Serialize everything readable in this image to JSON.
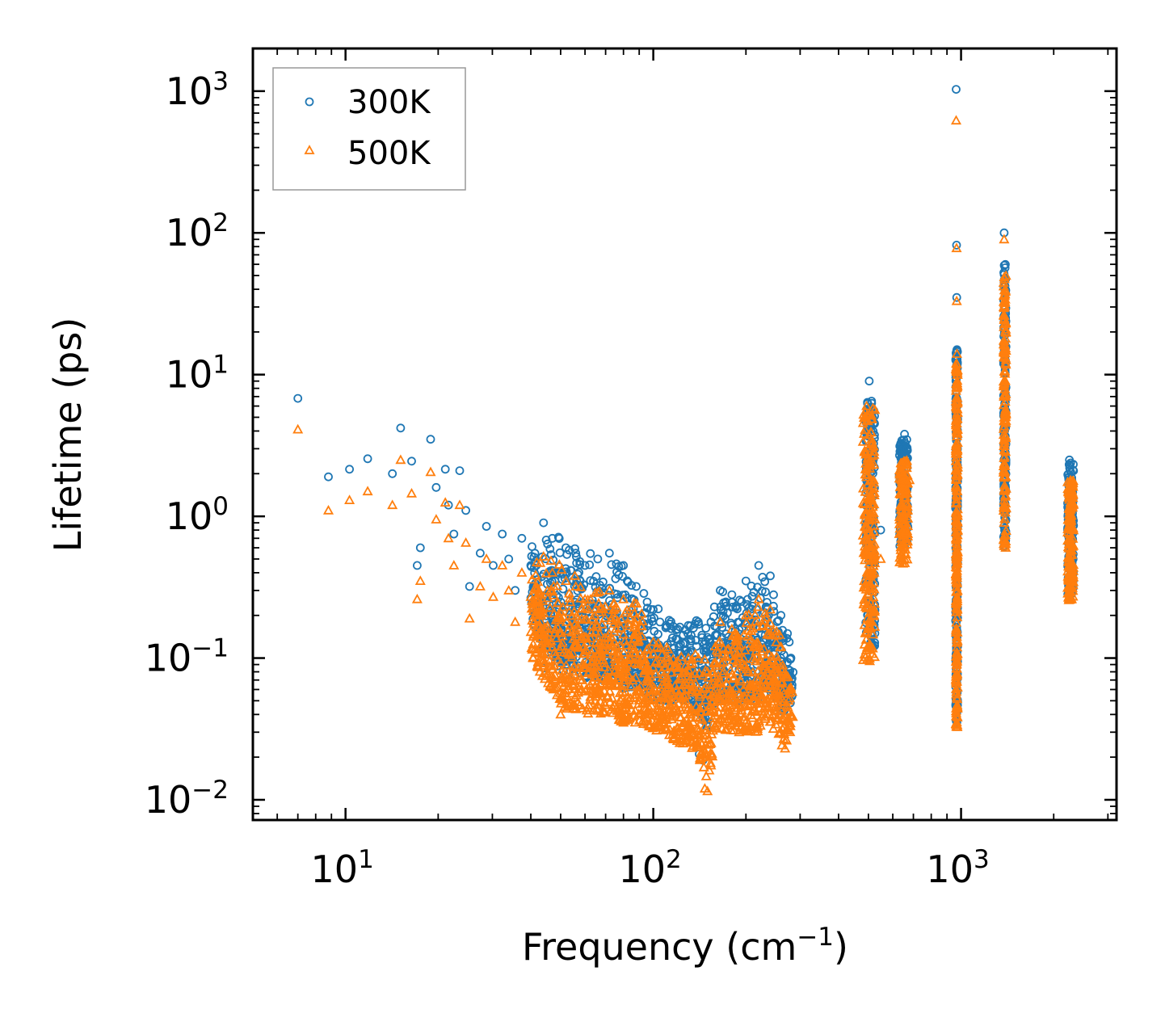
{
  "chart_data": {
    "type": "scatter",
    "title": "",
    "xlabel": "Frequency (cm",
    "xlabel_sup": "−1",
    "xlabel_end": ")",
    "ylabel": "Lifetime (ps)",
    "xscale": "log",
    "yscale": "log",
    "xlim": [
      5,
      3200
    ],
    "ylim": [
      0.0072,
      2000
    ],
    "legend_position": "top-left",
    "x_ticks": [
      {
        "value": 10,
        "base": "10",
        "exp": "1"
      },
      {
        "value": 100,
        "base": "10",
        "exp": "2"
      },
      {
        "value": 1000,
        "base": "10",
        "exp": "3"
      }
    ],
    "y_ticks": [
      {
        "value": 0.01,
        "base": "10",
        "exp": "−2"
      },
      {
        "value": 0.1,
        "base": "10",
        "exp": "−1"
      },
      {
        "value": 1,
        "base": "10",
        "exp": "0"
      },
      {
        "value": 10,
        "base": "10",
        "exp": "1"
      },
      {
        "value": 100,
        "base": "10",
        "exp": "2"
      },
      {
        "value": 1000,
        "base": "10",
        "exp": "3"
      }
    ],
    "series": [
      {
        "name": "300K",
        "marker": "circle",
        "color": "#1f77b4",
        "points": [
          [
            7,
            6.8
          ],
          [
            8.8,
            1.9
          ],
          [
            10.3,
            2.15
          ],
          [
            11.8,
            2.55
          ],
          [
            14.2,
            2.0
          ],
          [
            15.1,
            4.2
          ],
          [
            16.4,
            2.45
          ],
          [
            17.1,
            0.45
          ],
          [
            17.5,
            0.6
          ],
          [
            18.9,
            3.5
          ],
          [
            19.7,
            1.6
          ],
          [
            21.1,
            2.15
          ],
          [
            21.6,
            1.2
          ],
          [
            22.5,
            0.75
          ],
          [
            23.5,
            2.1
          ],
          [
            24.6,
            1.1
          ],
          [
            25.3,
            0.32
          ],
          [
            27.4,
            0.55
          ],
          [
            28.7,
            0.85
          ],
          [
            30.2,
            0.45
          ],
          [
            32.3,
            0.75
          ],
          [
            33.9,
            0.5
          ],
          [
            35.6,
            0.3
          ],
          [
            37.4,
            0.7
          ],
          [
            40,
            0.45
          ],
          [
            44,
            0.9
          ],
          [
            47,
            0.7
          ],
          [
            52,
            0.6
          ],
          [
            56,
            0.55
          ],
          [
            60,
            0.45
          ],
          [
            66,
            0.5
          ],
          [
            72,
            0.55
          ],
          [
            80,
            0.45
          ],
          [
            88,
            0.32
          ],
          [
            100,
            0.22
          ],
          [
            110,
            0.17
          ],
          [
            120,
            0.16
          ],
          [
            130,
            0.17
          ],
          [
            140,
            0.18
          ],
          [
            150,
            0.14
          ],
          [
            165,
            0.3
          ],
          [
            180,
            0.28
          ],
          [
            200,
            0.35
          ],
          [
            220,
            0.45
          ],
          [
            240,
            0.38
          ],
          [
            260,
            0.2
          ],
          [
            280,
            0.1
          ],
          [
            44,
            0.085
          ],
          [
            145,
            0.019
          ],
          [
            141,
            0.021
          ],
          [
            496,
            2.5
          ],
          [
            503,
            9.0
          ],
          [
            512,
            6.5
          ],
          [
            520,
            3.0
          ],
          [
            548,
            0.8
          ],
          [
            640,
            2.2
          ],
          [
            655,
            3.8
          ],
          [
            668,
            3.0
          ],
          [
            964,
            1030
          ],
          [
            967,
            82
          ],
          [
            968,
            35
          ],
          [
            970,
            15
          ],
          [
            972,
            2.5
          ],
          [
            1380,
            100
          ],
          [
            1385,
            35
          ],
          [
            1388,
            19
          ],
          [
            1392,
            8
          ],
          [
            2250,
            2.5
          ],
          [
            2270,
            1.8
          ],
          [
            2300,
            1.2
          ]
        ]
      },
      {
        "name": "500K",
        "marker": "triangle",
        "color": "#ff7f0e",
        "points": [
          [
            7,
            4.1
          ],
          [
            8.8,
            1.1
          ],
          [
            10.3,
            1.3
          ],
          [
            11.8,
            1.5
          ],
          [
            14.2,
            1.2
          ],
          [
            15.1,
            2.5
          ],
          [
            16.4,
            1.45
          ],
          [
            17.1,
            0.26
          ],
          [
            17.5,
            0.35
          ],
          [
            18.9,
            2.05
          ],
          [
            19.7,
            0.95
          ],
          [
            21.1,
            1.25
          ],
          [
            21.6,
            0.7
          ],
          [
            22.5,
            0.45
          ],
          [
            23.5,
            1.2
          ],
          [
            24.6,
            0.65
          ],
          [
            25.3,
            0.19
          ],
          [
            27.4,
            0.32
          ],
          [
            28.7,
            0.5
          ],
          [
            30.2,
            0.27
          ],
          [
            32.3,
            0.45
          ],
          [
            33.9,
            0.3
          ],
          [
            35.6,
            0.18
          ],
          [
            37.4,
            0.4
          ],
          [
            40,
            0.27
          ],
          [
            44,
            0.52
          ],
          [
            47,
            0.4
          ],
          [
            52,
            0.35
          ],
          [
            56,
            0.32
          ],
          [
            60,
            0.26
          ],
          [
            66,
            0.29
          ],
          [
            72,
            0.3
          ],
          [
            80,
            0.26
          ],
          [
            88,
            0.19
          ],
          [
            100,
            0.13
          ],
          [
            110,
            0.1
          ],
          [
            120,
            0.095
          ],
          [
            130,
            0.1
          ],
          [
            140,
            0.1
          ],
          [
            150,
            0.08
          ],
          [
            165,
            0.18
          ],
          [
            180,
            0.16
          ],
          [
            200,
            0.2
          ],
          [
            220,
            0.26
          ],
          [
            240,
            0.22
          ],
          [
            260,
            0.12
          ],
          [
            280,
            0.06
          ],
          [
            50,
            0.04
          ],
          [
            80,
            0.035
          ],
          [
            125,
            0.025
          ],
          [
            147,
            0.012
          ],
          [
            150,
            0.0115
          ],
          [
            190,
            0.03
          ],
          [
            268,
            0.023
          ],
          [
            496,
            1.4
          ],
          [
            503,
            5.2
          ],
          [
            512,
            3.5
          ],
          [
            520,
            1.8
          ],
          [
            548,
            0.5
          ],
          [
            640,
            1.2
          ],
          [
            655,
            2.2
          ],
          [
            668,
            1.7
          ],
          [
            680,
            1.8
          ],
          [
            964,
            620
          ],
          [
            967,
            78
          ],
          [
            968,
            33
          ],
          [
            970,
            14
          ],
          [
            972,
            1.5
          ],
          [
            1380,
            90
          ],
          [
            1385,
            32
          ],
          [
            1388,
            16
          ],
          [
            1392,
            5
          ],
          [
            2250,
            1.5
          ],
          [
            2270,
            1.0
          ],
          [
            2300,
            0.7
          ]
        ]
      }
    ],
    "clusters": [
      {
        "series": 0,
        "x": [
          490,
          525
        ],
        "y": [
          0.12,
          6.5
        ],
        "n": 220
      },
      {
        "series": 1,
        "x": [
          480,
          525
        ],
        "y": [
          0.09,
          6.0
        ],
        "n": 220
      },
      {
        "series": 0,
        "x": [
          630,
          672
        ],
        "y": [
          0.6,
          3.5
        ],
        "n": 140
      },
      {
        "series": 1,
        "x": [
          630,
          672
        ],
        "y": [
          0.45,
          2.5
        ],
        "n": 140
      },
      {
        "series": 0,
        "x": [
          960,
          975
        ],
        "y": [
          0.035,
          15
        ],
        "n": 240
      },
      {
        "series": 1,
        "x": [
          962,
          975
        ],
        "y": [
          0.032,
          12
        ],
        "n": 240
      },
      {
        "series": 0,
        "x": [
          1375,
          1400
        ],
        "y": [
          0.6,
          60
        ],
        "n": 160
      },
      {
        "series": 1,
        "x": [
          1375,
          1400
        ],
        "y": [
          0.6,
          50
        ],
        "n": 160
      },
      {
        "series": 0,
        "x": [
          2220,
          2320
        ],
        "y": [
          0.28,
          2.4
        ],
        "n": 160
      },
      {
        "series": 1,
        "x": [
          2220,
          2320
        ],
        "y": [
          0.25,
          1.8
        ],
        "n": 160
      }
    ],
    "envelope": {
      "x": [
        40,
        50,
        60,
        70,
        80,
        90,
        100,
        110,
        120,
        130,
        140,
        150,
        160,
        170,
        180,
        200,
        220,
        240,
        260,
        285
      ],
      "upper_300K": [
        0.7,
        0.75,
        0.6,
        0.5,
        0.5,
        0.4,
        0.25,
        0.2,
        0.18,
        0.17,
        0.2,
        0.17,
        0.3,
        0.3,
        0.28,
        0.35,
        0.45,
        0.35,
        0.25,
        0.1
      ],
      "lower_300K": [
        0.15,
        0.08,
        0.07,
        0.07,
        0.06,
        0.06,
        0.05,
        0.05,
        0.05,
        0.05,
        0.04,
        0.03,
        0.05,
        0.05,
        0.05,
        0.05,
        0.05,
        0.06,
        0.04,
        0.05
      ],
      "upper_500K": [
        0.5,
        0.5,
        0.38,
        0.3,
        0.3,
        0.25,
        0.16,
        0.13,
        0.11,
        0.11,
        0.12,
        0.1,
        0.19,
        0.18,
        0.17,
        0.22,
        0.28,
        0.22,
        0.15,
        0.06
      ],
      "lower_500K": [
        0.1,
        0.045,
        0.04,
        0.04,
        0.035,
        0.035,
        0.03,
        0.03,
        0.025,
        0.025,
        0.02,
        0.012,
        0.03,
        0.03,
        0.03,
        0.03,
        0.03,
        0.035,
        0.023,
        0.03
      ]
    }
  }
}
